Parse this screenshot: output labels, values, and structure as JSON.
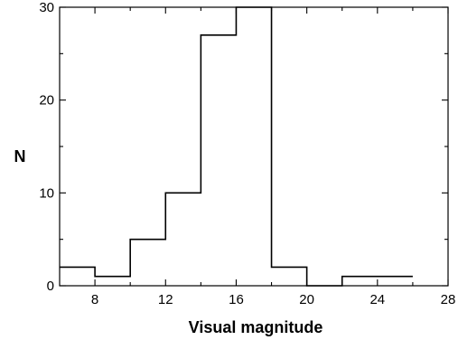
{
  "chart_data": {
    "type": "bar",
    "style": "step-histogram",
    "bin_edges": [
      6,
      8,
      10,
      12,
      14,
      16,
      18,
      20,
      22,
      24,
      26
    ],
    "values": [
      2,
      1,
      5,
      10,
      27,
      30,
      2,
      0,
      1,
      1
    ],
    "xlabel": "Visual magnitude",
    "ylabel": "N",
    "xlim": [
      6,
      28
    ],
    "ylim": [
      0,
      30
    ],
    "xticks": [
      8,
      12,
      16,
      20,
      24,
      28
    ],
    "xtick_labels": [
      "8",
      "12",
      "16",
      "20",
      "24",
      "28"
    ],
    "xticks_minor": [
      10,
      14,
      18,
      22,
      26
    ],
    "yticks": [
      0,
      10,
      20,
      30
    ],
    "ytick_labels": [
      "0",
      "10",
      "20",
      "30"
    ],
    "yticks_minor": [
      5,
      15,
      25
    ],
    "grid": false,
    "legend": "none"
  }
}
